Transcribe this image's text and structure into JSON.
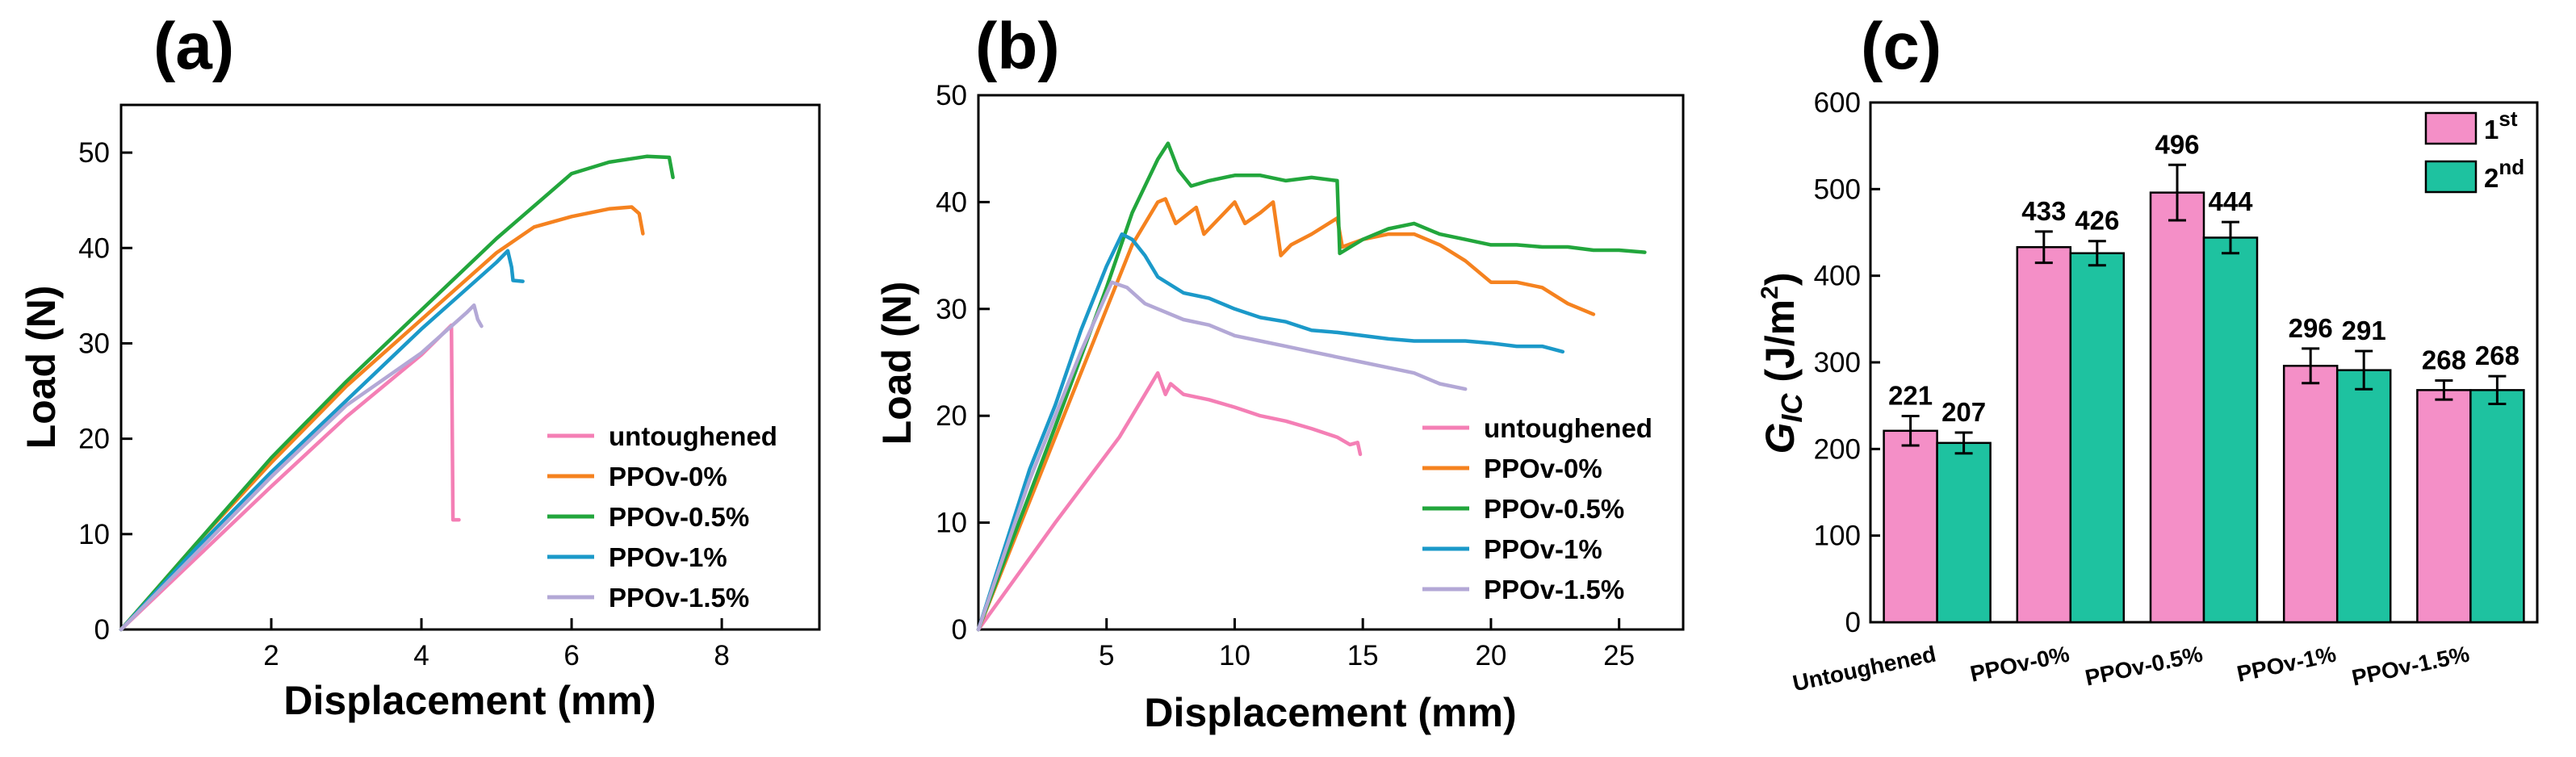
{
  "chart_data": [
    {
      "panel": "(a)",
      "type": "line",
      "xlabel": "Displacement (mm)",
      "ylabel": "Load (N)",
      "xlim": [
        0,
        9.3
      ],
      "ylim": [
        0,
        55
      ],
      "xticks": [
        2,
        4,
        6,
        8
      ],
      "yticks": [
        0,
        10,
        20,
        30,
        40,
        50
      ],
      "legend_position": "bottom-right",
      "series": [
        {
          "name": "untoughened",
          "color": "#f47fb5",
          "points": [
            [
              0,
              0
            ],
            [
              1,
              7.5
            ],
            [
              2,
              15
            ],
            [
              3,
              22.3
            ],
            [
              4,
              28.8
            ],
            [
              4.4,
              31.9
            ],
            [
              4.42,
              11.5
            ],
            [
              4.5,
              11.5
            ]
          ]
        },
        {
          "name": "PPOv-0%",
          "color": "#f5821f",
          "points": [
            [
              0,
              0
            ],
            [
              1,
              9
            ],
            [
              2,
              17.5
            ],
            [
              3,
              25.5
            ],
            [
              4,
              32.5
            ],
            [
              5,
              39.5
            ],
            [
              5.5,
              42.2
            ],
            [
              6,
              43.3
            ],
            [
              6.5,
              44.1
            ],
            [
              6.8,
              44.3
            ],
            [
              6.9,
              43.6
            ],
            [
              6.95,
              41.5
            ]
          ]
        },
        {
          "name": "PPOv-0.5%",
          "color": "#22a63c",
          "points": [
            [
              0,
              0
            ],
            [
              1,
              9
            ],
            [
              2,
              18
            ],
            [
              3,
              26
            ],
            [
              4,
              33.5
            ],
            [
              5,
              41
            ],
            [
              6,
              47.8
            ],
            [
              6.5,
              49
            ],
            [
              7,
              49.6
            ],
            [
              7.3,
              49.5
            ],
            [
              7.35,
              47.4
            ]
          ]
        },
        {
          "name": "PPOv-1%",
          "color": "#1b99c9",
          "points": [
            [
              0,
              0
            ],
            [
              1,
              8.5
            ],
            [
              2,
              16.5
            ],
            [
              3,
              24
            ],
            [
              4,
              31.5
            ],
            [
              5,
              38.5
            ],
            [
              5.15,
              39.7
            ],
            [
              5.2,
              38
            ],
            [
              5.22,
              36.6
            ],
            [
              5.35,
              36.5
            ]
          ]
        },
        {
          "name": "PPOv-1.5%",
          "color": "#b3a8d6",
          "points": [
            [
              0,
              0
            ],
            [
              1,
              8
            ],
            [
              2,
              16
            ],
            [
              3,
              23.5
            ],
            [
              4,
              29
            ],
            [
              4.6,
              33.2
            ],
            [
              4.7,
              34
            ],
            [
              4.75,
              32.5
            ],
            [
              4.8,
              31.8
            ]
          ]
        }
      ]
    },
    {
      "panel": "(b)",
      "type": "line",
      "xlabel": "Displacement (mm)",
      "ylabel": "Load (N)",
      "xlim": [
        0,
        27.5
      ],
      "ylim": [
        0,
        50
      ],
      "xticks": [
        5,
        10,
        15,
        20,
        25
      ],
      "yticks": [
        0,
        10,
        20,
        30,
        40,
        50
      ],
      "legend_position": "bottom-right",
      "series": [
        {
          "name": "untoughened",
          "color": "#f47fb5",
          "points": [
            [
              0,
              0
            ],
            [
              3,
              10
            ],
            [
              5.5,
              18
            ],
            [
              7,
              24
            ],
            [
              7.3,
              22
            ],
            [
              7.5,
              23
            ],
            [
              8,
              22
            ],
            [
              9,
              21.5
            ],
            [
              10,
              20.8
            ],
            [
              11,
              20
            ],
            [
              12,
              19.5
            ],
            [
              13,
              18.8
            ],
            [
              14,
              18
            ],
            [
              14.5,
              17.3
            ],
            [
              14.8,
              17.5
            ],
            [
              14.9,
              16.4
            ]
          ]
        },
        {
          "name": "PPOv-0%",
          "color": "#f5821f",
          "points": [
            [
              0,
              0
            ],
            [
              3,
              18
            ],
            [
              5,
              30
            ],
            [
              6,
              36
            ],
            [
              7,
              40
            ],
            [
              7.3,
              40.3
            ],
            [
              7.7,
              38
            ],
            [
              8.5,
              39.5
            ],
            [
              8.8,
              37
            ],
            [
              9,
              37.5
            ],
            [
              10,
              40
            ],
            [
              10.4,
              38
            ],
            [
              11,
              39
            ],
            [
              11.5,
              40
            ],
            [
              11.8,
              35
            ],
            [
              12.2,
              36
            ],
            [
              13,
              37
            ],
            [
              14,
              38.5
            ],
            [
              14.2,
              35.8
            ],
            [
              15,
              36.5
            ],
            [
              16,
              37
            ],
            [
              17,
              37
            ],
            [
              18,
              36
            ],
            [
              19,
              34.5
            ],
            [
              20,
              32.5
            ],
            [
              21,
              32.5
            ],
            [
              22,
              32
            ],
            [
              23,
              30.5
            ],
            [
              24,
              29.5
            ]
          ]
        },
        {
          "name": "PPOv-0.5%",
          "color": "#22a63c",
          "points": [
            [
              0,
              0
            ],
            [
              3,
              19
            ],
            [
              5,
              32
            ],
            [
              6,
              39
            ],
            [
              7,
              44
            ],
            [
              7.4,
              45.5
            ],
            [
              7.8,
              43
            ],
            [
              8.3,
              41.5
            ],
            [
              9,
              42
            ],
            [
              10,
              42.5
            ],
            [
              11,
              42.5
            ],
            [
              12,
              42
            ],
            [
              13,
              42.3
            ],
            [
              14,
              42
            ],
            [
              14.1,
              35.2
            ],
            [
              15,
              36.5
            ],
            [
              16,
              37.5
            ],
            [
              17,
              38
            ],
            [
              18,
              37
            ],
            [
              19,
              36.5
            ],
            [
              20,
              36
            ],
            [
              21,
              36
            ],
            [
              22,
              35.8
            ],
            [
              23,
              35.8
            ],
            [
              24,
              35.5
            ],
            [
              25,
              35.5
            ],
            [
              26,
              35.3
            ]
          ]
        },
        {
          "name": "PPOv-1%",
          "color": "#1b99c9",
          "points": [
            [
              0,
              0
            ],
            [
              2,
              15
            ],
            [
              3,
              21
            ],
            [
              4,
              28
            ],
            [
              5,
              34
            ],
            [
              5.6,
              37
            ],
            [
              6,
              36.5
            ],
            [
              6.5,
              35
            ],
            [
              7,
              33
            ],
            [
              8,
              31.5
            ],
            [
              9,
              31
            ],
            [
              10,
              30
            ],
            [
              11,
              29.2
            ],
            [
              12,
              28.8
            ],
            [
              13,
              28
            ],
            [
              14,
              27.8
            ],
            [
              15,
              27.5
            ],
            [
              16,
              27.2
            ],
            [
              17,
              27
            ],
            [
              18,
              27
            ],
            [
              19,
              27
            ],
            [
              20,
              26.8
            ],
            [
              21,
              26.5
            ],
            [
              22,
              26.5
            ],
            [
              22.8,
              26
            ]
          ]
        },
        {
          "name": "PPOv-1.5%",
          "color": "#b3a8d6",
          "points": [
            [
              0,
              0
            ],
            [
              2,
              14
            ],
            [
              3,
              20
            ],
            [
              4,
              26
            ],
            [
              5.2,
              32.5
            ],
            [
              5.8,
              32
            ],
            [
              6.5,
              30.5
            ],
            [
              7,
              30
            ],
            [
              8,
              29
            ],
            [
              9,
              28.5
            ],
            [
              10,
              27.5
            ],
            [
              11,
              27
            ],
            [
              12,
              26.5
            ],
            [
              13,
              26
            ],
            [
              14,
              25.5
            ],
            [
              15,
              25
            ],
            [
              16,
              24.5
            ],
            [
              17,
              24
            ],
            [
              18,
              23
            ],
            [
              19,
              22.5
            ]
          ]
        }
      ]
    },
    {
      "panel": "(c)",
      "type": "bar",
      "ylabel_main": "G",
      "ylabel_sub": "IC",
      "ylabel_unit": "(J/m",
      "ylabel_sup": "2",
      "ylabel_end": ")",
      "ylim": [
        0,
        600
      ],
      "yticks": [
        0,
        100,
        200,
        300,
        400,
        500,
        600
      ],
      "categories": [
        "Untoughened",
        "PPOv-0%",
        "PPOv-0.5%",
        "PPOv-1%",
        "PPOv-1.5%"
      ],
      "legend_position": "top-right",
      "series": [
        {
          "name": "1",
          "name_sup": "st",
          "color": "#f48fc7",
          "values": [
            221,
            433,
            496,
            296,
            268
          ],
          "errors": [
            17,
            18,
            32,
            20,
            11
          ]
        },
        {
          "name": "2",
          "name_sup": "nd",
          "color": "#1ec2a0",
          "values": [
            207,
            426,
            444,
            291,
            268
          ],
          "errors": [
            12,
            14,
            18,
            22,
            16
          ]
        }
      ]
    }
  ]
}
